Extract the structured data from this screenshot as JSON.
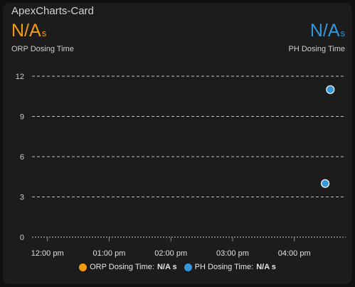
{
  "card": {
    "title": "ApexCharts-Card"
  },
  "stats": [
    {
      "value": "N/A",
      "unit": "s",
      "name": "ORP Dosing Time",
      "color": "#f39c12"
    },
    {
      "value": "N/A",
      "unit": "s",
      "name": "PH Dosing Time",
      "color": "#3498db"
    }
  ],
  "legend": [
    {
      "label": "ORP Dosing Time:",
      "value": "N/A s",
      "color": "#f39c12"
    },
    {
      "label": "PH Dosing Time:",
      "value": "N/A s",
      "color": "#3498db"
    }
  ],
  "chart_data": {
    "type": "scatter",
    "title": "",
    "xlabel": "",
    "ylabel": "",
    "ylim": [
      0,
      12
    ],
    "yticks": [
      "0",
      "3",
      "6",
      "9",
      "12"
    ],
    "xticks": [
      "12:00 pm",
      "01:00 pm",
      "02:00 pm",
      "03:00 pm",
      "04:00 pm"
    ],
    "xlim": [
      "11:45 am",
      "04:50 pm"
    ],
    "grid": true,
    "legend_position": "bottom",
    "series": [
      {
        "name": "ORP Dosing Time",
        "color": "#f39c12",
        "points": []
      },
      {
        "name": "PH Dosing Time",
        "color": "#3498db",
        "points": [
          {
            "x": "04:30 pm",
            "y": 4
          },
          {
            "x": "04:35 pm",
            "y": 11
          }
        ]
      }
    ]
  }
}
